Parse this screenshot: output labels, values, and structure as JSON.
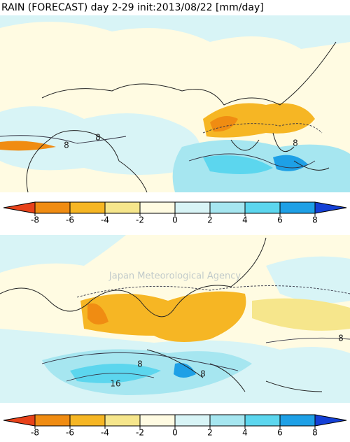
{
  "title": "RAIN (FORECAST) day 2-29 init:2013/08/22  [mm/day]",
  "watermark": "Japan Meteorological Agency",
  "colorbar": {
    "lim": [
      -8,
      8
    ],
    "ticks": [
      -8,
      -6,
      -4,
      -2,
      0,
      2,
      4,
      6,
      8
    ],
    "colors": [
      "#e8421a",
      "#f08c12",
      "#f6b624",
      "#f6e68c",
      "#fffbe2",
      "#d8f4f6",
      "#a6e6f0",
      "#5cd6ee",
      "#1ea0e6",
      "#1440d6"
    ]
  },
  "panels": [
    {
      "contour_labels": [
        "8",
        "8",
        "8"
      ]
    },
    {
      "contour_labels": [
        "8",
        "8",
        "8",
        "16"
      ]
    }
  ]
}
